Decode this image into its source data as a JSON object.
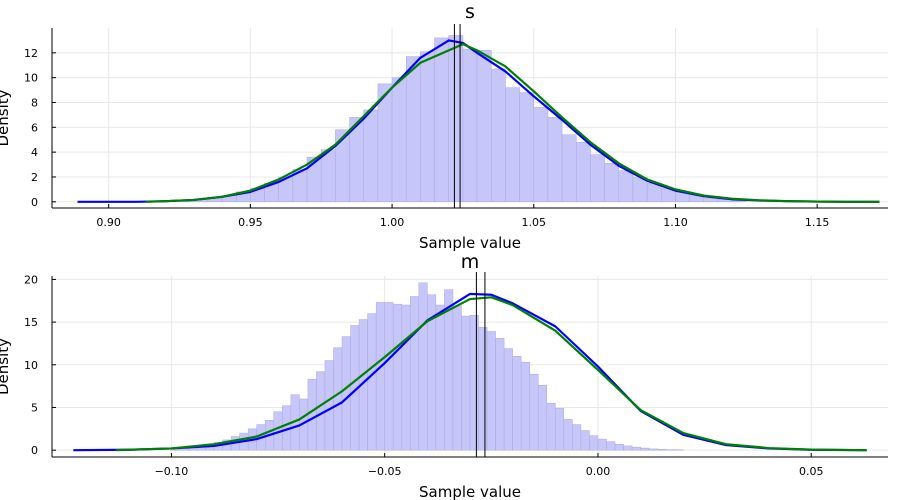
{
  "chart_data": [
    {
      "type": "histogram+density",
      "title": "s",
      "xlabel": "Sample value",
      "ylabel": "Density",
      "xlim": [
        0.88,
        1.175
      ],
      "ylim": [
        -0.5,
        14
      ],
      "xticks": [
        0.9,
        0.95,
        1.0,
        1.05,
        1.1,
        1.15
      ],
      "xtick_labels": [
        "0.90",
        "0.95",
        "1.00",
        "1.05",
        "1.10",
        "1.15"
      ],
      "yticks": [
        0,
        2,
        4,
        6,
        8,
        10,
        12
      ],
      "ytick_labels": [
        "0",
        "2",
        "4",
        "6",
        "8",
        "10",
        "12"
      ],
      "grid": true,
      "histogram": {
        "bin_start": 0.925,
        "bin_width": 0.005,
        "values": [
          0.1,
          0.2,
          0.3,
          0.5,
          0.8,
          1.1,
          1.5,
          2.0,
          2.6,
          3.6,
          4.2,
          5.8,
          6.8,
          7.4,
          9.5,
          10.0,
          11.7,
          12.1,
          13.2,
          13.4,
          12.3,
          12.2,
          10.7,
          9.2,
          8.8,
          7.6,
          6.8,
          5.4,
          4.8,
          3.8,
          3.1,
          2.5,
          2.0,
          1.5,
          1.1,
          0.8,
          0.5,
          0.3,
          0.2,
          0.1
        ]
      },
      "series": [
        {
          "color": "#0000ff",
          "x": [
            0.889,
            0.91,
            0.92,
            0.93,
            0.94,
            0.95,
            0.96,
            0.97,
            0.98,
            0.99,
            1.0,
            1.01,
            1.02,
            1.025,
            1.03,
            1.04,
            1.05,
            1.06,
            1.07,
            1.08,
            1.09,
            1.1,
            1.11,
            1.12,
            1.13,
            1.14,
            1.15,
            1.16,
            1.172
          ],
          "y": [
            0.0,
            0.0,
            0.05,
            0.15,
            0.4,
            0.8,
            1.6,
            2.7,
            4.5,
            6.7,
            9.2,
            11.6,
            13.0,
            12.8,
            12.0,
            10.5,
            8.5,
            6.6,
            4.6,
            2.9,
            1.7,
            0.9,
            0.45,
            0.2,
            0.1,
            0.05,
            0.02,
            0.0,
            0.0
          ]
        },
        {
          "color": "#008000",
          "x": [
            0.913,
            0.92,
            0.93,
            0.94,
            0.95,
            0.96,
            0.97,
            0.98,
            0.99,
            1.0,
            1.01,
            1.02,
            1.025,
            1.03,
            1.04,
            1.05,
            1.06,
            1.07,
            1.08,
            1.09,
            1.1,
            1.11,
            1.12,
            1.13,
            1.14,
            1.15,
            1.16,
            1.172
          ],
          "y": [
            0.0,
            0.05,
            0.15,
            0.4,
            0.9,
            1.8,
            3.0,
            4.6,
            6.9,
            9.2,
            11.2,
            12.2,
            12.7,
            12.2,
            10.9,
            8.9,
            6.8,
            4.8,
            3.1,
            1.8,
            1.0,
            0.5,
            0.25,
            0.12,
            0.05,
            0.02,
            0.0,
            0.0
          ]
        }
      ],
      "vlines": [
        1.022,
        1.024
      ]
    },
    {
      "type": "histogram+density",
      "title": "m",
      "xlabel": "Sample value",
      "ylabel": "Density",
      "xlim": [
        -0.128,
        0.068
      ],
      "ylim": [
        -0.8,
        20.4
      ],
      "xticks": [
        -0.1,
        -0.05,
        0.0,
        0.05
      ],
      "xtick_labels": [
        "−0.10",
        "−0.05",
        "0.00",
        "0.05"
      ],
      "yticks": [
        0,
        5,
        10,
        15,
        20
      ],
      "ytick_labels": [
        "0",
        "5",
        "10",
        "15",
        "20"
      ],
      "grid": true,
      "histogram": {
        "bin_start": -0.1,
        "bin_width": 0.002,
        "values": [
          0.2,
          0.3,
          0.4,
          0.5,
          0.7,
          0.9,
          1.2,
          1.6,
          2.0,
          2.5,
          3.0,
          3.5,
          4.5,
          5.2,
          6.5,
          6.0,
          8.3,
          9.2,
          10.5,
          12.0,
          13.3,
          14.6,
          15.3,
          16.0,
          17.3,
          17.3,
          17.1,
          17.0,
          18.0,
          19.6,
          18.2,
          17.0,
          18.8,
          16.9,
          15.7,
          15.8,
          14.4,
          13.9,
          13.1,
          11.9,
          11.0,
          10.3,
          8.9,
          7.6,
          5.5,
          4.9,
          3.6,
          3.0,
          2.3,
          1.7,
          1.3,
          1.0,
          0.7,
          0.5,
          0.35,
          0.25,
          0.15,
          0.1,
          0.07,
          0.05
        ]
      },
      "series": [
        {
          "color": "#0000ff",
          "x": [
            -0.123,
            -0.11,
            -0.1,
            -0.09,
            -0.08,
            -0.07,
            -0.06,
            -0.05,
            -0.04,
            -0.03,
            -0.025,
            -0.02,
            -0.01,
            0.0,
            0.01,
            0.02,
            0.03,
            0.04,
            0.05,
            0.063
          ],
          "y": [
            0.0,
            0.05,
            0.2,
            0.5,
            1.3,
            2.9,
            5.6,
            10.2,
            15.2,
            18.3,
            18.2,
            17.2,
            14.5,
            9.8,
            4.6,
            1.8,
            0.6,
            0.2,
            0.05,
            0.0
          ],
          "ylabel_offset": 0
        },
        {
          "color": "#008000",
          "x": [
            -0.113,
            -0.1,
            -0.09,
            -0.08,
            -0.07,
            -0.06,
            -0.05,
            -0.04,
            -0.03,
            -0.025,
            -0.02,
            -0.01,
            0.0,
            0.01,
            0.02,
            0.03,
            0.04,
            0.05,
            0.063
          ],
          "y": [
            0.0,
            0.2,
            0.7,
            1.6,
            3.6,
            6.9,
            10.9,
            15.1,
            17.7,
            17.9,
            17.0,
            14.0,
            9.4,
            4.7,
            2.0,
            0.7,
            0.25,
            0.06,
            0.0
          ]
        }
      ],
      "vlines": [
        -0.0285,
        -0.0265
      ]
    }
  ]
}
